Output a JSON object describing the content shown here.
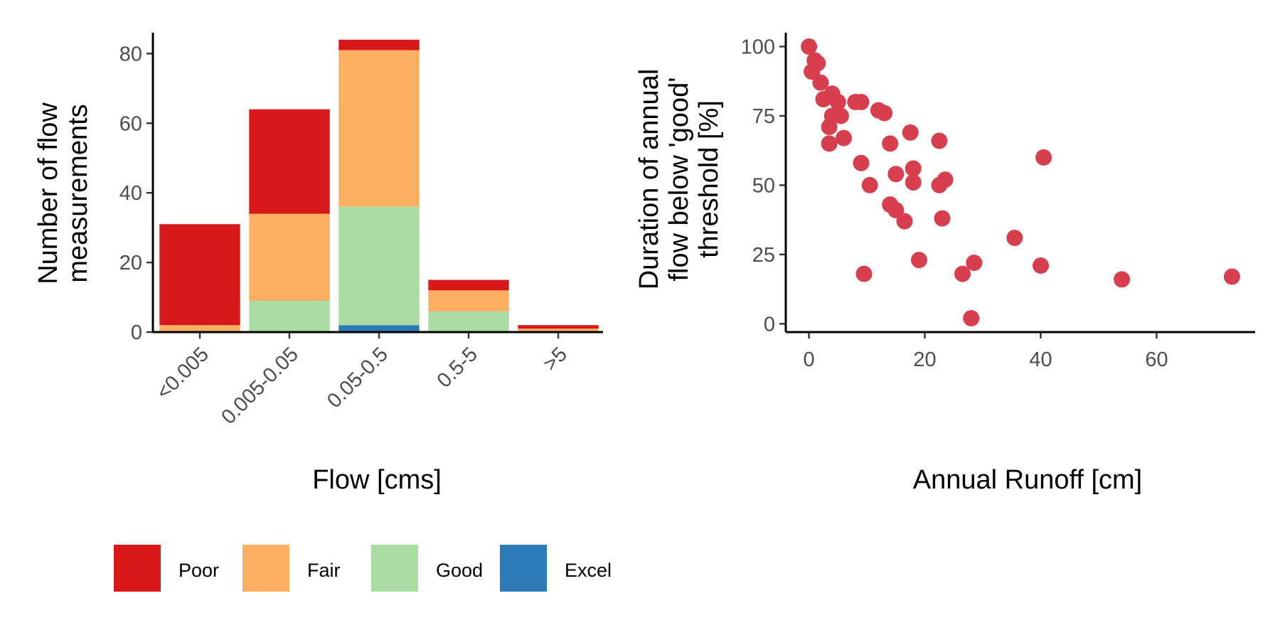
{
  "chart_data": [
    {
      "type": "bar",
      "stacked": true,
      "categories": [
        "<0.005",
        "0.005-0.05",
        "0.05-0.5",
        "0.5-5",
        ">5"
      ],
      "xlabel": "Flow [cms]",
      "ylabel_lines": [
        "Number of flow",
        "measurements"
      ],
      "ylim": [
        0,
        86
      ],
      "yticks": [
        0,
        20,
        40,
        60,
        80
      ],
      "grid": false,
      "legend_position": "bottom",
      "series": [
        {
          "name": "Excel",
          "color": "#2c7bb6",
          "values": [
            0,
            0,
            2,
            0,
            0
          ]
        },
        {
          "name": "Good",
          "color": "#abdda4",
          "values": [
            0,
            9,
            34,
            6,
            0
          ]
        },
        {
          "name": "Fair",
          "color": "#fdae61",
          "values": [
            2,
            25,
            45,
            6,
            1
          ]
        },
        {
          "name": "Poor",
          "color": "#d7191c",
          "values": [
            29,
            30,
            3,
            3,
            1
          ]
        }
      ],
      "legend_order": [
        "Poor",
        "Fair",
        "Good",
        "Excel"
      ]
    },
    {
      "type": "scatter",
      "xlabel": "Annual Runoff [cm]",
      "ylabel_lines": [
        "Duration of annual",
        "flow below 'good'",
        "threshold [%]"
      ],
      "xlim": [
        -4,
        77
      ],
      "ylim": [
        -3,
        105
      ],
      "xticks": [
        0,
        20,
        40,
        60
      ],
      "yticks": [
        0,
        25,
        50,
        75,
        100
      ],
      "grid": false,
      "point_color": "#d73f4f",
      "points": [
        [
          0,
          100
        ],
        [
          0.5,
          91
        ],
        [
          1,
          95
        ],
        [
          1.5,
          94
        ],
        [
          2,
          87
        ],
        [
          2.5,
          81
        ],
        [
          3.5,
          71
        ],
        [
          4,
          75
        ],
        [
          4,
          83
        ],
        [
          5,
          80
        ],
        [
          5.5,
          75
        ],
        [
          6,
          67
        ],
        [
          3.5,
          65
        ],
        [
          8,
          80
        ],
        [
          9,
          80
        ],
        [
          9,
          58
        ],
        [
          10.5,
          50
        ],
        [
          12,
          77
        ],
        [
          13,
          76
        ],
        [
          14,
          65
        ],
        [
          14,
          43
        ],
        [
          15,
          41
        ],
        [
          15,
          54
        ],
        [
          16.5,
          37
        ],
        [
          17.5,
          69
        ],
        [
          18,
          56
        ],
        [
          18,
          51
        ],
        [
          19,
          23
        ],
        [
          22.5,
          66
        ],
        [
          22.5,
          50
        ],
        [
          23,
          38
        ],
        [
          23.5,
          52
        ],
        [
          9.5,
          18
        ],
        [
          26.5,
          18
        ],
        [
          28,
          2
        ],
        [
          28.5,
          22
        ],
        [
          35.5,
          31
        ],
        [
          40,
          21
        ],
        [
          40.5,
          60
        ],
        [
          54,
          16
        ],
        [
          73,
          17
        ]
      ]
    }
  ]
}
